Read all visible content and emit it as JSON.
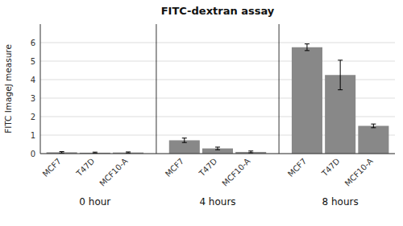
{
  "chart_data": {
    "type": "bar",
    "title": "FITC-dextran assay",
    "ylabel": "FITC ImageJ measure",
    "categories": [
      "MCF7",
      "T47D",
      "MCF10-A",
      "MCF7",
      "T47D",
      "MCF10-A",
      "MCF7",
      "T47D",
      "MCF10-A"
    ],
    "groups": [
      "0 hour",
      "4 hours",
      "8 hours"
    ],
    "values": [
      0.07,
      0.05,
      0.06,
      0.72,
      0.28,
      0.09,
      5.75,
      4.25,
      1.5
    ],
    "errors": [
      0.04,
      0.03,
      0.03,
      0.12,
      0.07,
      0.05,
      0.18,
      0.8,
      0.1
    ],
    "color": "#888888",
    "ylim": [
      0,
      7
    ],
    "yticks": [
      0,
      1,
      2,
      3,
      4,
      5,
      6
    ],
    "grid": true
  }
}
